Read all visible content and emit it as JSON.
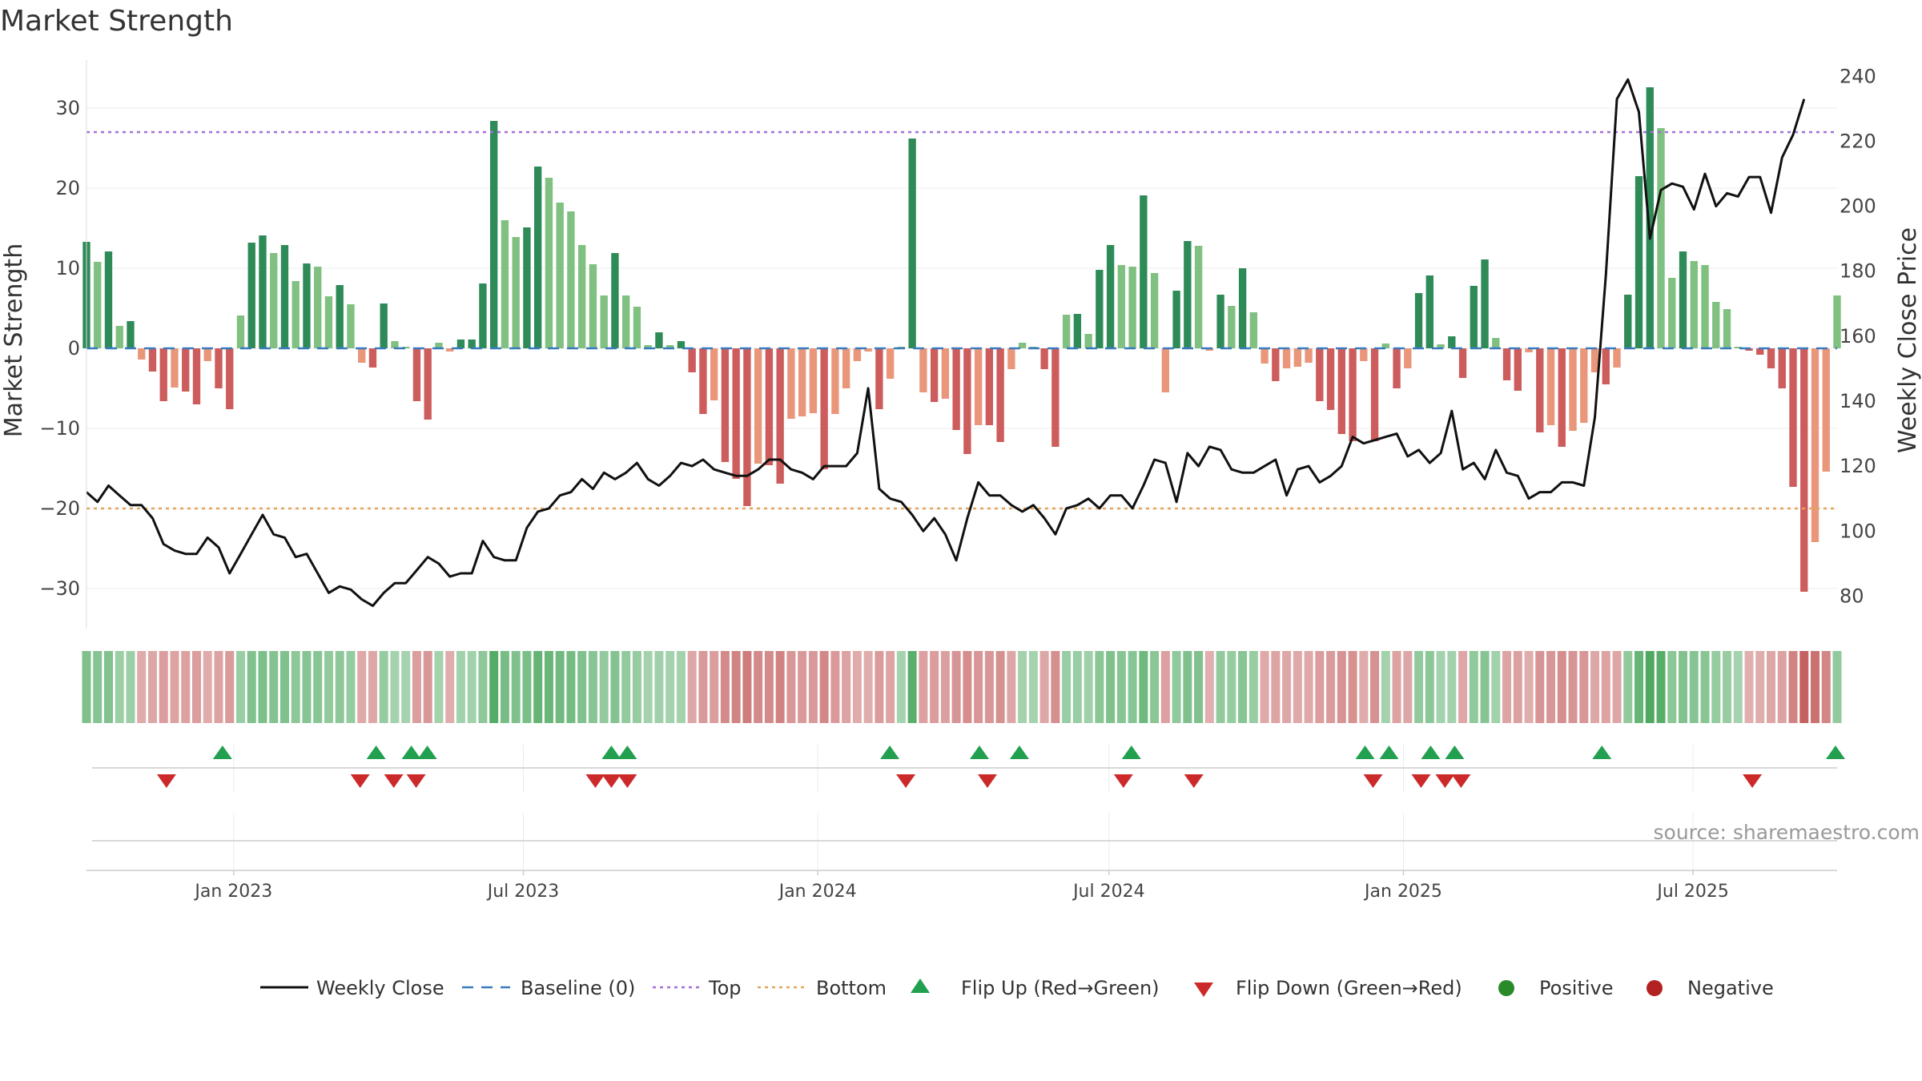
{
  "chart_data": {
    "type": "bar",
    "title": "Market Strength",
    "ylabel_left": "Market Strength",
    "ylabel_right": "Weekly Close Price",
    "ylim_left": [
      -35,
      36
    ],
    "yticks_left": [
      30,
      20,
      10,
      0,
      -10,
      -20,
      -30
    ],
    "ylim_right": [
      70,
      245
    ],
    "yticks_right": [
      240,
      220,
      200,
      180,
      160,
      140,
      120,
      100,
      80
    ],
    "x_start_date": "2022-10-01",
    "x_end_date": "2025-09-29",
    "xticks": [
      {
        "date": "2023-01-01",
        "label": "Jan 2023"
      },
      {
        "date": "2023-07-01",
        "label": "Jul 2023"
      },
      {
        "date": "2024-01-01",
        "label": "Jan 2024"
      },
      {
        "date": "2024-07-01",
        "label": "Jul 2024"
      },
      {
        "date": "2025-01-01",
        "label": "Jan 2025"
      },
      {
        "date": "2025-07-01",
        "label": "Jul 2025"
      }
    ],
    "top_line": 27,
    "bottom_line": -20,
    "strength": [
      13.3,
      10.8,
      12.1,
      2.8,
      3.4,
      -1.4,
      -2.9,
      -6.6,
      -4.9,
      -5.4,
      -7,
      -1.6,
      -5,
      -7.6,
      4.1,
      13.2,
      14.1,
      11.9,
      12.9,
      8.4,
      10.6,
      10.2,
      6.5,
      7.9,
      5.5,
      -1.8,
      -2.4,
      5.6,
      0.9,
      0.2,
      -6.6,
      -8.9,
      0.7,
      -0.4,
      1.1,
      1.1,
      8.1,
      28.4,
      16,
      13.9,
      15.1,
      22.7,
      21.3,
      18.2,
      17.1,
      12.9,
      10.5,
      6.6,
      11.9,
      6.6,
      5.2,
      0.4,
      2,
      0.4,
      0.9,
      -3,
      -8.2,
      -6.5,
      -14.2,
      -16.3,
      -19.7,
      -14.4,
      -14.6,
      -16.9,
      -8.8,
      -8.5,
      -8.1,
      -15.1,
      -8.2,
      -5,
      -1.6,
      -0.4,
      -7.6,
      -3.8,
      0.2,
      26.2,
      -5.5,
      -6.7,
      -6.3,
      -10.2,
      -13.2,
      -9.6,
      -9.6,
      -11.7,
      -2.6,
      0.7,
      0.2,
      -2.6,
      -12.3,
      4.2,
      4.3,
      1.8,
      9.8,
      12.9,
      10.4,
      10.2,
      19.1,
      9.4,
      -5.5,
      7.2,
      13.4,
      12.8,
      -0.3,
      6.7,
      5.3,
      10,
      4.5,
      -1.9,
      -4.1,
      -2.5,
      -2.3,
      -1.8,
      -6.6,
      -7.7,
      -10.7,
      -11.6,
      -1.6,
      -11.6,
      0.6,
      -5,
      -2.5,
      6.9,
      9.1,
      0.5,
      1.5,
      -3.7,
      7.8,
      11.1,
      1.3,
      -4,
      -5.3,
      -0.5,
      -10.5,
      -9.6,
      -12.3,
      -10.3,
      -9.3,
      -3,
      -4.5,
      -2.4,
      6.7,
      21.5,
      32.6,
      27.5,
      8.8,
      12.1,
      10.9,
      10.4,
      5.8,
      4.9,
      0.2,
      -0.3,
      -0.8,
      -2.5,
      -5,
      -17.3,
      -30.4,
      -24.2,
      -15.4,
      6.6
    ],
    "weekly_close": [
      112,
      109,
      114,
      111,
      108,
      108,
      104,
      96,
      94,
      93,
      93,
      98,
      95,
      87,
      93,
      99,
      105,
      99,
      98,
      92,
      93,
      87,
      81,
      83,
      82,
      79,
      77,
      81,
      84,
      84,
      88,
      92,
      90,
      86,
      87,
      87,
      97,
      92,
      91,
      91,
      101,
      106,
      107,
      111,
      112,
      116,
      113,
      118,
      116,
      118,
      121,
      116,
      114,
      117,
      121,
      120,
      122,
      119,
      118,
      117,
      117,
      119,
      122,
      122,
      119,
      118,
      116,
      120,
      120,
      120,
      124,
      144,
      113,
      110,
      109,
      105,
      100,
      104,
      99,
      91,
      104,
      115,
      111,
      111,
      108,
      106,
      108,
      104,
      99,
      107,
      108,
      110,
      107,
      111,
      111,
      107,
      114,
      122,
      121,
      109,
      124,
      120,
      126,
      125,
      119,
      118,
      118,
      120,
      122,
      111,
      119,
      120,
      115,
      117,
      120,
      129,
      127,
      128,
      129,
      130,
      123,
      125,
      121,
      124,
      137,
      119,
      121,
      116,
      125,
      118,
      117,
      110,
      112,
      112,
      115,
      115,
      114,
      135,
      179,
      233,
      239,
      229,
      190,
      205,
      207,
      206,
      199,
      210,
      200,
      204,
      203,
      209,
      209,
      198,
      215,
      222,
      233
    ],
    "flip_up_dates": [
      "2022-12-25",
      "2023-03-31",
      "2023-04-22",
      "2023-05-02",
      "2023-08-25",
      "2023-09-04",
      "2024-02-15",
      "2024-04-11",
      "2024-05-06",
      "2024-07-15",
      "2024-12-08",
      "2024-12-23",
      "2025-01-18",
      "2025-02-02",
      "2025-05-05",
      "2025-09-28"
    ],
    "flip_down_dates": [
      "2022-11-20",
      "2023-03-21",
      "2023-04-11",
      "2023-04-25",
      "2023-08-15",
      "2023-08-25",
      "2023-09-04",
      "2024-02-25",
      "2024-04-16",
      "2024-07-10",
      "2024-08-23",
      "2024-12-13",
      "2025-01-12",
      "2025-01-27",
      "2025-02-06",
      "2025-08-07"
    ],
    "colors": {
      "strong_green": "#2e8b57",
      "light_green": "#80c080",
      "strong_red": "#cd5c5c",
      "light_red": "#e9967a",
      "price_line": "#111111",
      "top_line": "#a270d8",
      "bottom_line": "#e3a45c",
      "baseline": "#3a7bbf",
      "flip_up": "#22a050",
      "flip_down": "#cc2a2a",
      "positive": "#2a8a2a",
      "negative": "#b22222"
    },
    "legend": {
      "weekly_close": "Weekly Close",
      "baseline": "Baseline (0)",
      "top": "Top",
      "bottom": "Bottom",
      "flip_up": "Flip Up (Red→Green)",
      "flip_down": "Flip Down (Green→Red)",
      "positive": "Positive",
      "negative": "Negative"
    },
    "source": "source: sharemaestro.com"
  }
}
